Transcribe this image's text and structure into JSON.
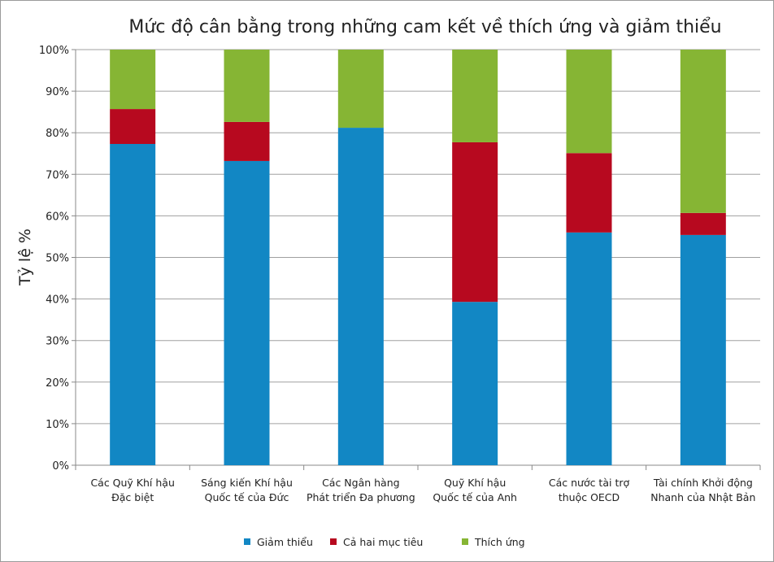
{
  "chart_data": {
    "type": "bar",
    "stacked": true,
    "title": "Mức độ cân bằng trong những cam kết về thích ứng và giảm thiểu",
    "xlabel": "",
    "ylabel": "Tỷ lệ %",
    "ylim": [
      0,
      100
    ],
    "yticks": [
      "0%",
      "10%",
      "20%",
      "30%",
      "40%",
      "50%",
      "60%",
      "70%",
      "80%",
      "90%",
      "100%"
    ],
    "grid": true,
    "legend_position": "bottom",
    "categories": [
      [
        "Các Quỹ Khí hậu",
        "Đặc biệt"
      ],
      [
        "Sáng kiến Khí hậu",
        "Quốc tế của Đức"
      ],
      [
        "Các Ngân hàng",
        "Phát triển Đa phương"
      ],
      [
        "Quỹ Khí hậu",
        "Quốc tế của Anh"
      ],
      [
        "Các nước tài trợ",
        "thuộc OECD"
      ],
      [
        "Tài chính Khởi động",
        "Nhanh của Nhật Bản"
      ]
    ],
    "series": [
      {
        "name": "Giảm thiểu",
        "color": "#1287c4",
        "values": [
          77.3,
          73.2,
          81.2,
          39.3,
          56.0,
          55.4
        ]
      },
      {
        "name": "Cả hai mục tiêu",
        "color": "#b7091f",
        "values": [
          8.4,
          9.4,
          0.0,
          38.4,
          19.1,
          5.3
        ]
      },
      {
        "name": "Thích ứng",
        "color": "#86b534",
        "values": [
          14.3,
          17.4,
          18.8,
          22.3,
          24.9,
          39.3
        ]
      }
    ]
  }
}
